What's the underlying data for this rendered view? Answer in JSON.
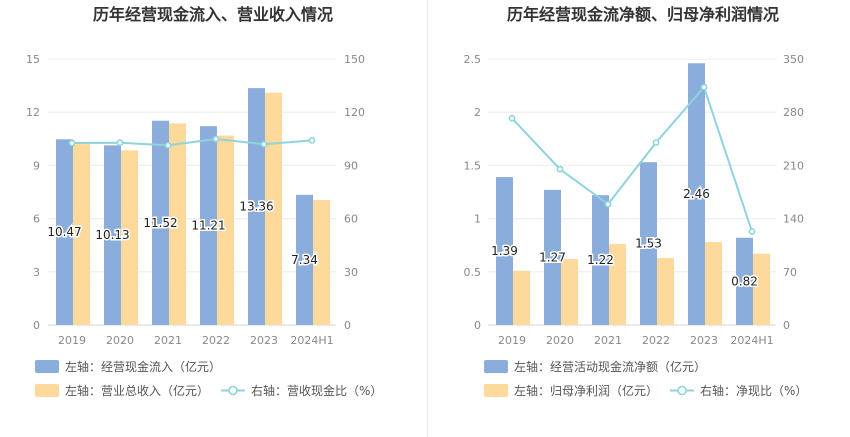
{
  "colors": {
    "bar_primary": "#8aaddb",
    "bar_secondary": "#fdd99c",
    "line": "#8fd3dc",
    "axis_text": "#888888",
    "grid": "#ececec",
    "title": "#333333",
    "label": "#222222"
  },
  "chart_data": [
    {
      "type": "bar",
      "title": "历年经营现金流入、营业收入情况",
      "categories": [
        "2019",
        "2020",
        "2021",
        "2022",
        "2023",
        "2024H1"
      ],
      "left_axis": {
        "ticks": [
          "0",
          "3",
          "6",
          "9",
          "12",
          "15"
        ],
        "ylim": [
          0,
          15
        ]
      },
      "right_axis": {
        "ticks": [
          "0",
          "30",
          "60",
          "90",
          "120",
          "150"
        ],
        "ylim": [
          0,
          150
        ]
      },
      "grid": true,
      "legend_position": "bottom-left",
      "series": [
        {
          "name": "左轴：经营现金流入（亿元）",
          "kind": "bar",
          "axis": "left",
          "color_key": "bar_primary",
          "values": [
            10.47,
            10.13,
            11.52,
            11.21,
            13.36,
            7.34
          ],
          "labels": [
            "10.47",
            "10.13",
            "11.52",
            "11.21",
            "13.36",
            "7.34"
          ]
        },
        {
          "name": "左轴：营业总收入（亿元）",
          "kind": "bar",
          "axis": "left",
          "color_key": "bar_secondary",
          "values": [
            10.2,
            9.85,
            11.37,
            10.68,
            13.1,
            7.05
          ]
        },
        {
          "name": "右轴：营收现金比（%）",
          "kind": "line",
          "axis": "right",
          "color_key": "line",
          "values": [
            102.6,
            102.8,
            101.3,
            104.9,
            101.9,
            104.1
          ]
        }
      ]
    },
    {
      "type": "bar",
      "title": "历年经营现金流净额、归母净利润情况",
      "categories": [
        "2019",
        "2020",
        "2021",
        "2022",
        "2023",
        "2024H1"
      ],
      "left_axis": {
        "ticks": [
          "0",
          "0.5",
          "1",
          "1.5",
          "2",
          "2.5"
        ],
        "ylim": [
          0,
          2.5
        ]
      },
      "right_axis": {
        "ticks": [
          "0",
          "70",
          "140",
          "210",
          "280",
          "350"
        ],
        "ylim": [
          0,
          350
        ]
      },
      "grid": true,
      "legend_position": "bottom-left",
      "series": [
        {
          "name": "左轴：经营活动现金流净额（亿元）",
          "kind": "bar",
          "axis": "left",
          "color_key": "bar_primary",
          "values": [
            1.39,
            1.27,
            1.22,
            1.53,
            2.46,
            0.82
          ],
          "labels": [
            "1.39",
            "1.27",
            "1.22",
            "1.53",
            "2.46",
            "0.82"
          ]
        },
        {
          "name": "左轴：归母净利润（亿元）",
          "kind": "bar",
          "axis": "left",
          "color_key": "bar_secondary",
          "values": [
            0.51,
            0.62,
            0.76,
            0.63,
            0.78,
            0.67
          ]
        },
        {
          "name": "右轴：净现比（%）",
          "kind": "line",
          "axis": "right",
          "color_key": "line",
          "values": [
            272,
            205,
            159,
            240,
            313,
            123
          ]
        }
      ]
    }
  ]
}
